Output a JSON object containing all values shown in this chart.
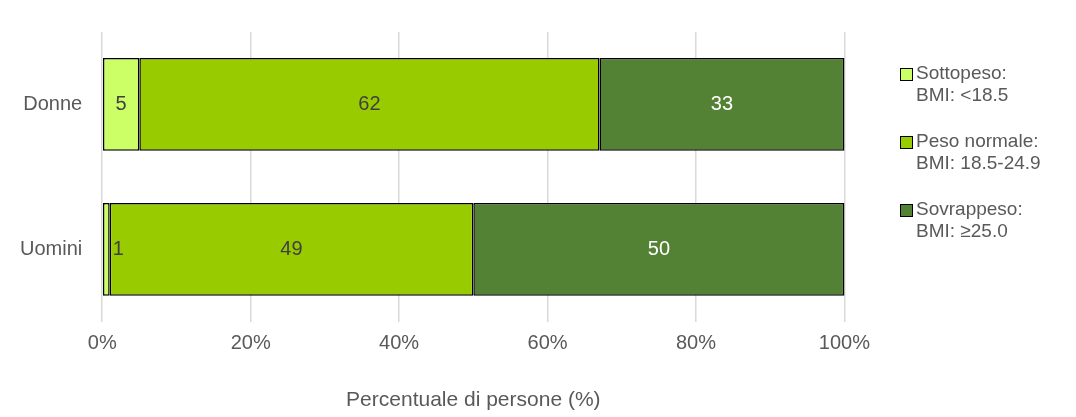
{
  "chart_data": {
    "type": "bar",
    "orientation": "horizontal",
    "stacked": true,
    "categories": [
      "Donne",
      "Uomini"
    ],
    "series": [
      {
        "name": "Sottopeso: BMI: <18.5",
        "color": "#ccff66",
        "values": [
          5,
          1
        ]
      },
      {
        "name": "Peso normale: BMI: 18.5-24.9",
        "color": "#99cc00",
        "values": [
          62,
          49
        ]
      },
      {
        "name": "Sovrappeso: BMI: ≥25.0",
        "color": "#548235",
        "values": [
          33,
          50
        ]
      }
    ],
    "xlim": [
      0,
      100
    ],
    "xticks": [
      {
        "value": 0,
        "label": "0%"
      },
      {
        "value": 20,
        "label": "20%"
      },
      {
        "value": 40,
        "label": "40%"
      },
      {
        "value": 60,
        "label": "60%"
      },
      {
        "value": 80,
        "label": "80%"
      },
      {
        "value": 100,
        "label": "100%"
      }
    ],
    "xlabel": "Percentuale di persone (%)",
    "grid": "x",
    "legend": "right",
    "data_labels": true
  }
}
